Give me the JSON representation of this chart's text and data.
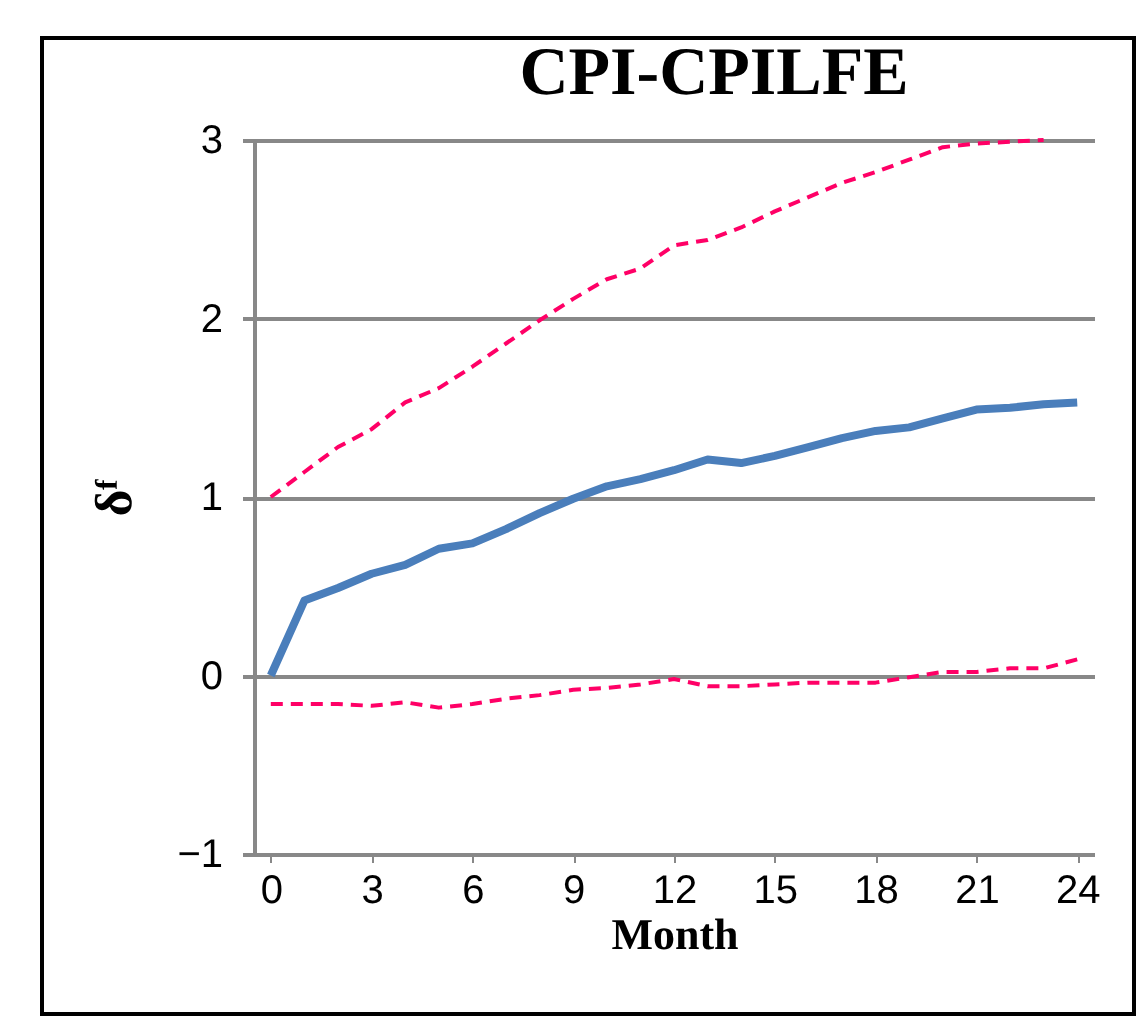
{
  "chart_data": {
    "type": "line",
    "title": "CPI-CPILFE",
    "xlabel": "Month",
    "ylabel": "δᶠ",
    "x": [
      0,
      1,
      2,
      3,
      4,
      5,
      6,
      7,
      8,
      9,
      10,
      11,
      12,
      13,
      14,
      15,
      16,
      17,
      18,
      19,
      20,
      21,
      22,
      23,
      24
    ],
    "series": [
      {
        "color": "#ff0066",
        "line_style": "dashed",
        "values": [
          1.0,
          1.14,
          1.28,
          1.38,
          1.53,
          1.61,
          1.73,
          1.86,
          1.99,
          2.11,
          2.22,
          2.28,
          2.41,
          2.44,
          2.51,
          2.6,
          2.68,
          2.76,
          2.82,
          2.89,
          2.96,
          2.98,
          2.99,
          3.0,
          null
        ]
      },
      {
        "color": "#4a7ebb",
        "line_style": "solid",
        "values": [
          0,
          0.42,
          0.49,
          0.57,
          0.62,
          0.71,
          0.74,
          0.82,
          0.91,
          0.99,
          1.06,
          1.1,
          1.15,
          1.21,
          1.19,
          1.23,
          1.28,
          1.33,
          1.37,
          1.39,
          1.44,
          1.49,
          1.5,
          1.52,
          1.53
        ]
      },
      {
        "color": "#ff0066",
        "line_style": "dashed",
        "values": [
          -0.16,
          -0.16,
          -0.16,
          -0.17,
          -0.15,
          -0.18,
          -0.16,
          -0.13,
          -0.11,
          -0.08,
          -0.07,
          -0.05,
          -0.02,
          -0.06,
          -0.06,
          -0.05,
          -0.04,
          -0.04,
          -0.04,
          -0.01,
          0.02,
          0.02,
          0.04,
          0.04,
          0.09
        ]
      }
    ],
    "xlim": [
      -0.5,
      24.5
    ],
    "xticks": [
      0,
      3,
      6,
      9,
      12,
      15,
      18,
      21,
      24
    ],
    "ylim": [
      -1,
      3
    ],
    "yticks": [
      -1,
      0,
      1,
      2,
      3
    ],
    "grid": "y",
    "marker": "none"
  }
}
